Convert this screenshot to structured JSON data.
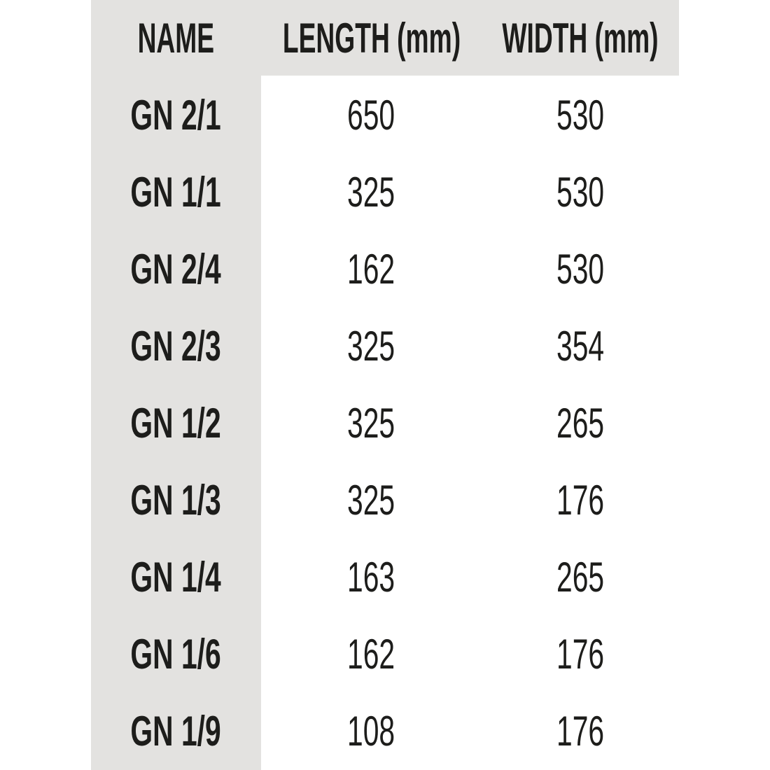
{
  "chart_data": {
    "type": "table",
    "columns": [
      "NAME",
      "LENGTH (mm)",
      "WIDTH (mm)"
    ],
    "rows": [
      [
        "GN 2/1",
        "650",
        "530"
      ],
      [
        "GN 1/1",
        "325",
        "530"
      ],
      [
        "GN 2/4",
        "162",
        "530"
      ],
      [
        "GN 2/3",
        "325",
        "354"
      ],
      [
        "GN 1/2",
        "325",
        "265"
      ],
      [
        "GN 1/3",
        "325",
        "176"
      ],
      [
        "GN 1/4",
        "163",
        "265"
      ],
      [
        "GN 1/6",
        "162",
        "176"
      ],
      [
        "GN 1/9",
        "108",
        "176"
      ]
    ],
    "layout": {
      "legend": "none",
      "grid": "off",
      "header_background": "#e3e2e0",
      "name_column_background": "#e3e2e0"
    }
  },
  "colors": {
    "band_gray": "#e3e2e0",
    "text": "#1d1d1b",
    "background": "#ffffff"
  }
}
